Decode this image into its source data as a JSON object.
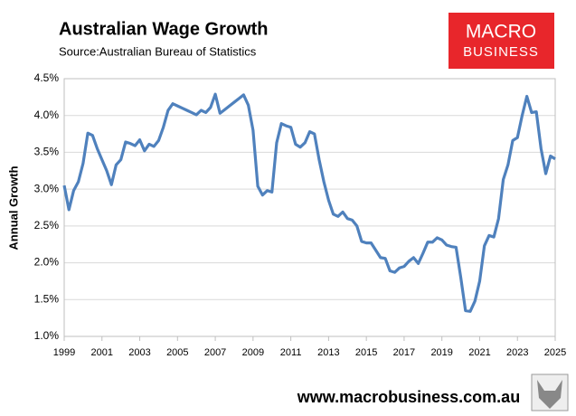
{
  "chart_data": {
    "type": "line",
    "title": "Australian Wage Growth",
    "subtitle": "Source:Australian Bureau of Statistics",
    "y_label": "Annual Growth",
    "xlim": [
      1999,
      2025
    ],
    "xticks": [
      1999,
      2001,
      2003,
      2005,
      2007,
      2009,
      2011,
      2013,
      2015,
      2017,
      2019,
      2021,
      2023,
      2025
    ],
    "ylim": [
      1.0,
      4.5
    ],
    "yticks": [
      {
        "value": 1.0,
        "label": "1.0%"
      },
      {
        "value": 1.5,
        "label": "1.5%"
      },
      {
        "value": 2.0,
        "label": "2.0%"
      },
      {
        "value": 2.5,
        "label": "2.5%"
      },
      {
        "value": 3.0,
        "label": "3.0%"
      },
      {
        "value": 3.5,
        "label": "3.5%"
      },
      {
        "value": 4.0,
        "label": "4.0%"
      },
      {
        "value": 4.5,
        "label": "4.5%"
      }
    ],
    "grid": true,
    "color": "#4f81bd",
    "x": [
      1999,
      1999.25,
      1999.5,
      1999.75,
      2000,
      2000.25,
      2000.5,
      2000.75,
      2001,
      2001.25,
      2001.5,
      2001.75,
      2002,
      2002.25,
      2002.5,
      2002.75,
      2003,
      2003.25,
      2003.5,
      2003.75,
      2004,
      2004.25,
      2004.5,
      2004.75,
      2005,
      2005.25,
      2005.5,
      2005.75,
      2006,
      2006.25,
      2006.5,
      2006.75,
      2007,
      2007.25,
      2007.5,
      2007.75,
      2008,
      2008.25,
      2008.5,
      2008.75,
      2009,
      2009.25,
      2009.5,
      2009.75,
      2010,
      2010.25,
      2010.5,
      2010.75,
      2011,
      2011.25,
      2011.5,
      2011.75,
      2012,
      2012.25,
      2012.5,
      2012.75,
      2013,
      2013.25,
      2013.5,
      2013.75,
      2014,
      2014.25,
      2014.5,
      2014.75,
      2015,
      2015.25,
      2015.5,
      2015.75,
      2016,
      2016.25,
      2016.5,
      2016.75,
      2017,
      2017.25,
      2017.5,
      2017.75,
      2018,
      2018.25,
      2018.5,
      2018.75,
      2019,
      2019.25,
      2019.5,
      2019.75,
      2020,
      2020.25,
      2020.5,
      2020.75,
      2021,
      2021.25,
      2021.5,
      2021.75,
      2022,
      2022.25,
      2022.5,
      2022.75,
      2023,
      2023.25,
      2023.5,
      2023.75,
      2024,
      2024.25,
      2024.5,
      2024.75,
      2025
    ],
    "values": [
      3.05,
      2.72,
      2.98,
      3.1,
      3.35,
      3.76,
      3.73,
      3.55,
      3.4,
      3.25,
      3.06,
      3.33,
      3.4,
      3.64,
      3.62,
      3.59,
      3.67,
      3.52,
      3.61,
      3.58,
      3.66,
      3.84,
      4.07,
      4.16,
      4.13,
      4.1,
      4.07,
      4.04,
      4.01,
      4.07,
      4.04,
      4.11,
      4.29,
      4.03,
      4.08,
      4.13,
      4.18,
      4.23,
      4.28,
      4.14,
      3.8,
      3.04,
      2.92,
      2.98,
      2.96,
      3.63,
      3.89,
      3.86,
      3.84,
      3.61,
      3.57,
      3.63,
      3.78,
      3.75,
      3.4,
      3.1,
      2.85,
      2.66,
      2.63,
      2.69,
      2.6,
      2.58,
      2.5,
      2.29,
      2.27,
      2.27,
      2.17,
      2.07,
      2.06,
      1.89,
      1.87,
      1.93,
      1.95,
      2.02,
      2.07,
      1.99,
      2.13,
      2.28,
      2.28,
      2.34,
      2.31,
      2.24,
      2.22,
      2.21,
      1.8,
      1.35,
      1.34,
      1.48,
      1.75,
      2.23,
      2.37,
      2.35,
      2.6,
      3.13,
      3.33,
      3.66,
      3.7,
      4.0,
      4.26,
      4.04,
      4.05,
      3.55,
      3.21,
      3.45,
      3.41
    ]
  },
  "logo": {
    "line1": "MACRO",
    "line2": "BUSINESS"
  },
  "footer": "www.macrobusiness.com.au"
}
